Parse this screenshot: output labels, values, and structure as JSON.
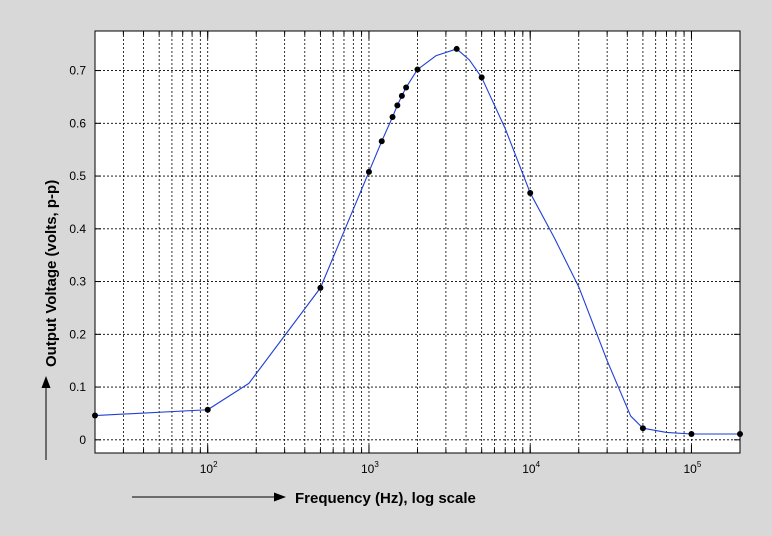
{
  "chart_data": {
    "type": "line",
    "title": "",
    "xlabel": "Frequency (Hz), log scale",
    "ylabel": "Output Voltage (volts, p-p)",
    "xscale": "log",
    "xlim": [
      20,
      200000
    ],
    "ylim": [
      -0.025,
      0.775
    ],
    "grid": true,
    "legend": "none",
    "x_ticks": [
      {
        "value": 100,
        "base": "10",
        "exp": "2"
      },
      {
        "value": 1000,
        "base": "10",
        "exp": "3"
      },
      {
        "value": 10000,
        "base": "10",
        "exp": "4"
      },
      {
        "value": 100000,
        "base": "10",
        "exp": "5"
      }
    ],
    "y_ticks": [
      {
        "value": 0,
        "label": "0"
      },
      {
        "value": 0.1,
        "label": "0.1"
      },
      {
        "value": 0.2,
        "label": "0.2"
      },
      {
        "value": 0.3,
        "label": "0.3"
      },
      {
        "value": 0.4,
        "label": "0.4"
      },
      {
        "value": 0.5,
        "label": "0.5"
      },
      {
        "value": 0.6,
        "label": "0.6"
      },
      {
        "value": 0.7,
        "label": "0.7"
      }
    ],
    "series": [
      {
        "line_color": "#1f3fd6",
        "marker_color": "#000000",
        "points": [
          {
            "x": 20,
            "y": 0.046
          },
          {
            "x": 100,
            "y": 0.057
          },
          {
            "x": 500,
            "y": 0.288
          },
          {
            "x": 1000,
            "y": 0.508
          },
          {
            "x": 1200,
            "y": 0.566
          },
          {
            "x": 1400,
            "y": 0.612
          },
          {
            "x": 1500,
            "y": 0.634
          },
          {
            "x": 1600,
            "y": 0.652
          },
          {
            "x": 1700,
            "y": 0.668
          },
          {
            "x": 2000,
            "y": 0.702
          },
          {
            "x": 3500,
            "y": 0.741
          },
          {
            "x": 5000,
            "y": 0.687
          },
          {
            "x": 10000,
            "y": 0.468
          },
          {
            "x": 50000,
            "y": 0.022
          },
          {
            "x": 100000,
            "y": 0.011
          },
          {
            "x": 200000,
            "y": 0.011
          }
        ],
        "curve": [
          {
            "x": 20,
            "y": 0.046
          },
          {
            "x": 100,
            "y": 0.057
          },
          {
            "x": 180,
            "y": 0.107
          },
          {
            "x": 500,
            "y": 0.288
          },
          {
            "x": 1000,
            "y": 0.508
          },
          {
            "x": 1200,
            "y": 0.566
          },
          {
            "x": 1400,
            "y": 0.612
          },
          {
            "x": 1500,
            "y": 0.634
          },
          {
            "x": 1600,
            "y": 0.652
          },
          {
            "x": 1700,
            "y": 0.668
          },
          {
            "x": 2000,
            "y": 0.702
          },
          {
            "x": 2600,
            "y": 0.728
          },
          {
            "x": 3500,
            "y": 0.741
          },
          {
            "x": 4200,
            "y": 0.72
          },
          {
            "x": 5000,
            "y": 0.687
          },
          {
            "x": 7000,
            "y": 0.59
          },
          {
            "x": 10000,
            "y": 0.468
          },
          {
            "x": 14000,
            "y": 0.385
          },
          {
            "x": 20000,
            "y": 0.29
          },
          {
            "x": 30000,
            "y": 0.15
          },
          {
            "x": 42000,
            "y": 0.045
          },
          {
            "x": 50000,
            "y": 0.022
          },
          {
            "x": 70000,
            "y": 0.014
          },
          {
            "x": 100000,
            "y": 0.011
          },
          {
            "x": 200000,
            "y": 0.011
          }
        ]
      }
    ]
  }
}
